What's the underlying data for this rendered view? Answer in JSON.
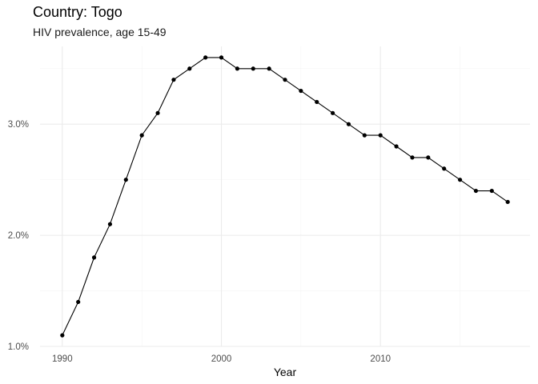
{
  "chart_data": {
    "type": "line",
    "title": "Country: Togo",
    "subtitle": "HIV prevalence, age 15-49",
    "xlabel": "Year",
    "ylabel": "",
    "xlim": [
      1988.6,
      2019.4
    ],
    "ylim": [
      1.0,
      3.7
    ],
    "x_ticks": [
      1990,
      2000,
      2010
    ],
    "x_tick_labels": [
      "1990",
      "2000",
      "2010"
    ],
    "y_ticks": [
      1.0,
      2.0,
      3.0
    ],
    "y_tick_labels": [
      "1.0%",
      "2.0%",
      "3.0%"
    ],
    "grid": true,
    "legend": "none",
    "series": [
      {
        "x": [
          1990,
          1991,
          1992,
          1993,
          1994,
          1995,
          1996,
          1997,
          1998,
          1999,
          2000,
          2001,
          2002,
          2003,
          2004,
          2005,
          2006,
          2007,
          2008,
          2009,
          2010,
          2011,
          2012,
          2013,
          2014,
          2015,
          2016,
          2017,
          2018
        ],
        "values": [
          1.1,
          1.4,
          1.8,
          2.1,
          2.5,
          2.9,
          3.1,
          3.4,
          3.5,
          3.6,
          3.6,
          3.5,
          3.5,
          3.5,
          3.4,
          3.3,
          3.2,
          3.1,
          3.0,
          2.9,
          2.9,
          2.8,
          2.7,
          2.7,
          2.6,
          2.5,
          2.4,
          2.4,
          2.3
        ]
      }
    ],
    "line_color": "#000000"
  }
}
